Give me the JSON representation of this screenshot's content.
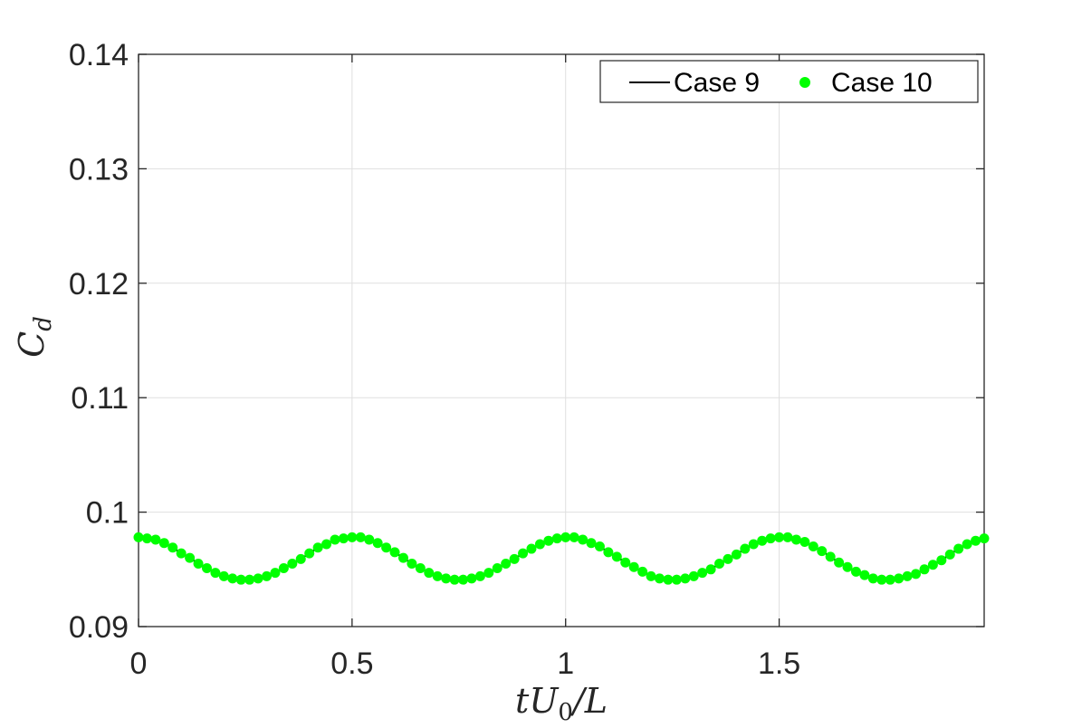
{
  "chart_data": {
    "type": "line",
    "title": "",
    "xlabel": "tU0/L",
    "xlabel_parts": {
      "base": "tU",
      "sub": "0",
      "tail": "/L"
    },
    "ylabel": "Cd",
    "ylabel_parts": {
      "base": "C",
      "sub": "d"
    },
    "xlim": [
      0,
      1.98
    ],
    "ylim": [
      0.09,
      0.14
    ],
    "xticks": [
      0,
      0.5,
      1,
      1.5
    ],
    "xtick_labels": [
      "0",
      "0.5",
      "1",
      "1.5"
    ],
    "yticks": [
      0.09,
      0.1,
      0.11,
      0.12,
      0.13,
      0.14
    ],
    "ytick_labels": [
      "0.09",
      "0.1",
      "0.11",
      "0.12",
      "0.13",
      "0.14"
    ],
    "grid": true,
    "legend_position": "top-right",
    "legend_orientation": "horizontal",
    "x": [
      0,
      0.02,
      0.04,
      0.06,
      0.08,
      0.1,
      0.12,
      0.14,
      0.16,
      0.18,
      0.2,
      0.22,
      0.24,
      0.26,
      0.28,
      0.3,
      0.32,
      0.34,
      0.36,
      0.38,
      0.4,
      0.42,
      0.44,
      0.46,
      0.48,
      0.5,
      0.52,
      0.54,
      0.56,
      0.58,
      0.6,
      0.62,
      0.64,
      0.66,
      0.68,
      0.7,
      0.72,
      0.74,
      0.76,
      0.78,
      0.8,
      0.82,
      0.84,
      0.86,
      0.88,
      0.9,
      0.92,
      0.94,
      0.96,
      0.98,
      1,
      1.02,
      1.04,
      1.06,
      1.08,
      1.1,
      1.12,
      1.14,
      1.16,
      1.18,
      1.2,
      1.22,
      1.24,
      1.26,
      1.28,
      1.3,
      1.32,
      1.34,
      1.36,
      1.38,
      1.4,
      1.42,
      1.44,
      1.46,
      1.48,
      1.5,
      1.52,
      1.54,
      1.56,
      1.58,
      1.6,
      1.62,
      1.64,
      1.66,
      1.68,
      1.7,
      1.72,
      1.74,
      1.76,
      1.78,
      1.8,
      1.82,
      1.84,
      1.86,
      1.88,
      1.9,
      1.92,
      1.94,
      1.96,
      1.98
    ],
    "series": [
      {
        "name": "Case 9",
        "style": "line",
        "color": "#000000",
        "values": [
          0.0978,
          0.0977,
          0.0976,
          0.0973,
          0.0969,
          0.0964,
          0.096,
          0.0955,
          0.0951,
          0.0947,
          0.0944,
          0.0942,
          0.0941,
          0.0941,
          0.0942,
          0.0944,
          0.0947,
          0.0951,
          0.0955,
          0.0959,
          0.0964,
          0.0969,
          0.0972,
          0.0976,
          0.0977,
          0.0978,
          0.0978,
          0.0976,
          0.0973,
          0.0969,
          0.0965,
          0.096,
          0.0955,
          0.0951,
          0.0947,
          0.0944,
          0.0942,
          0.0941,
          0.0941,
          0.0942,
          0.0944,
          0.0947,
          0.0951,
          0.0955,
          0.0959,
          0.0964,
          0.0968,
          0.0972,
          0.0975,
          0.0977,
          0.0978,
          0.0978,
          0.0976,
          0.0973,
          0.097,
          0.0965,
          0.0961,
          0.0956,
          0.0952,
          0.0948,
          0.0944,
          0.0942,
          0.0941,
          0.0941,
          0.0942,
          0.0944,
          0.0947,
          0.095,
          0.0955,
          0.0959,
          0.0963,
          0.0968,
          0.0972,
          0.0975,
          0.0977,
          0.0978,
          0.0978,
          0.0976,
          0.0974,
          0.097,
          0.0966,
          0.0961,
          0.0956,
          0.0952,
          0.0948,
          0.0945,
          0.0942,
          0.0941,
          0.0941,
          0.0942,
          0.0944,
          0.0946,
          0.095,
          0.0954,
          0.0958,
          0.0963,
          0.0968,
          0.0972,
          0.0975,
          0.0977
        ]
      },
      {
        "name": "Case 10",
        "style": "markers",
        "color": "#00ff00",
        "values": [
          0.0978,
          0.0977,
          0.0976,
          0.0973,
          0.0969,
          0.0964,
          0.096,
          0.0955,
          0.0951,
          0.0947,
          0.0944,
          0.0942,
          0.0941,
          0.0941,
          0.0942,
          0.0944,
          0.0947,
          0.0951,
          0.0955,
          0.0959,
          0.0964,
          0.0969,
          0.0972,
          0.0976,
          0.0977,
          0.0978,
          0.0978,
          0.0976,
          0.0973,
          0.0969,
          0.0965,
          0.096,
          0.0955,
          0.0951,
          0.0947,
          0.0944,
          0.0942,
          0.0941,
          0.0941,
          0.0942,
          0.0944,
          0.0947,
          0.0951,
          0.0955,
          0.0959,
          0.0964,
          0.0968,
          0.0972,
          0.0975,
          0.0977,
          0.0978,
          0.0978,
          0.0976,
          0.0973,
          0.097,
          0.0965,
          0.0961,
          0.0956,
          0.0952,
          0.0948,
          0.0944,
          0.0942,
          0.0941,
          0.0941,
          0.0942,
          0.0944,
          0.0947,
          0.095,
          0.0955,
          0.0959,
          0.0963,
          0.0968,
          0.0972,
          0.0975,
          0.0977,
          0.0978,
          0.0978,
          0.0976,
          0.0974,
          0.097,
          0.0966,
          0.0961,
          0.0956,
          0.0952,
          0.0948,
          0.0945,
          0.0942,
          0.0941,
          0.0941,
          0.0942,
          0.0944,
          0.0946,
          0.095,
          0.0954,
          0.0958,
          0.0963,
          0.0968,
          0.0972,
          0.0975,
          0.0977
        ]
      }
    ]
  }
}
